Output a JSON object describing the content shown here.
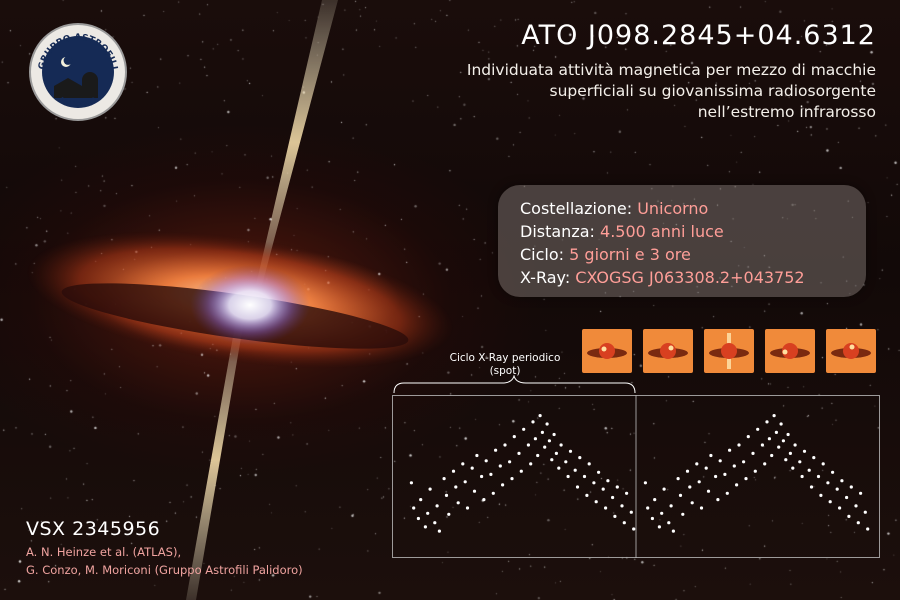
{
  "logo": {
    "top_text": "GRUPPO ASTROFILI",
    "bottom_text": "PALIDORO",
    "icon": "observatory-moon-logo"
  },
  "title": "ATO J098.2845+04.6312",
  "description": "Individuata attività magnetica per mezzo di macchie superficiali su giovanissima radiosorgente nell’estremo infrarosso",
  "info": {
    "rows": [
      {
        "label": "Costellazione:",
        "value": "Unicorno"
      },
      {
        "label": "Distanza:",
        "value": "4.500 anni luce"
      },
      {
        "label": "Ciclo:",
        "value": "5 giorni e 3 ore"
      },
      {
        "label": "X-Ray:",
        "value": "CXOGSG J063308.2+043752"
      }
    ]
  },
  "periodic_label": "Ciclo X-Ray periodico (spot)",
  "vsx": "VSX 2345956",
  "credits": [
    "A. N. Heinze et al. (ATLAS),",
    "G. Conzo, M. Moriconi (Gruppo Astrofili Palidoro)"
  ],
  "colors": {
    "accent_value": "#ff9e98",
    "credit": "#f0a3a0",
    "plot_points": "#ffffff"
  },
  "chart_data": {
    "type": "scatter",
    "xlim": [
      -1,
      1
    ],
    "phase_marker": 0,
    "series": [
      {
        "values": [
          [
            -0.96,
            17.06
          ],
          [
            -0.95,
            17.3
          ],
          [
            -0.93,
            17.4
          ],
          [
            -0.92,
            17.22
          ],
          [
            -0.9,
            17.48
          ],
          [
            -0.89,
            17.35
          ],
          [
            -0.88,
            17.12
          ],
          [
            -0.86,
            17.44
          ],
          [
            -0.85,
            17.28
          ],
          [
            -0.84,
            17.52
          ],
          [
            -0.82,
            17.02
          ],
          [
            -0.81,
            17.18
          ],
          [
            -0.8,
            17.36
          ],
          [
            -0.78,
            16.95
          ],
          [
            -0.77,
            17.1
          ],
          [
            -0.76,
            17.25
          ],
          [
            -0.74,
            16.88
          ],
          [
            -0.73,
            17.05
          ],
          [
            -0.72,
            17.3
          ],
          [
            -0.7,
            16.92
          ],
          [
            -0.69,
            17.14
          ],
          [
            -0.68,
            16.8
          ],
          [
            -0.66,
            17.0
          ],
          [
            -0.65,
            17.22
          ],
          [
            -0.64,
            16.85
          ],
          [
            -0.62,
            16.98
          ],
          [
            -0.61,
            17.16
          ],
          [
            -0.6,
            16.75
          ],
          [
            -0.58,
            16.9
          ],
          [
            -0.57,
            17.08
          ],
          [
            -0.56,
            16.7
          ],
          [
            -0.54,
            16.86
          ],
          [
            -0.53,
            17.02
          ],
          [
            -0.52,
            16.62
          ],
          [
            -0.5,
            16.78
          ],
          [
            -0.49,
            16.95
          ],
          [
            -0.48,
            16.55
          ],
          [
            -0.46,
            16.7
          ],
          [
            -0.45,
            16.88
          ],
          [
            -0.44,
            16.48
          ],
          [
            -0.43,
            16.64
          ],
          [
            -0.42,
            16.8
          ],
          [
            -0.41,
            16.42
          ],
          [
            -0.4,
            16.58
          ],
          [
            -0.39,
            16.72
          ],
          [
            -0.38,
            16.5
          ],
          [
            -0.37,
            16.66
          ],
          [
            -0.36,
            16.84
          ],
          [
            -0.35,
            16.6
          ],
          [
            -0.34,
            16.78
          ],
          [
            -0.33,
            16.92
          ],
          [
            -0.32,
            16.7
          ],
          [
            -0.3,
            16.86
          ],
          [
            -0.29,
            17.0
          ],
          [
            -0.28,
            16.76
          ],
          [
            -0.26,
            16.94
          ],
          [
            -0.25,
            17.1
          ],
          [
            -0.24,
            16.82
          ],
          [
            -0.22,
            17.0
          ],
          [
            -0.21,
            17.18
          ],
          [
            -0.2,
            16.88
          ],
          [
            -0.18,
            17.06
          ],
          [
            -0.17,
            17.24
          ],
          [
            -0.16,
            16.96
          ],
          [
            -0.14,
            17.12
          ],
          [
            -0.13,
            17.3
          ],
          [
            -0.12,
            17.04
          ],
          [
            -0.1,
            17.2
          ],
          [
            -0.09,
            17.38
          ],
          [
            -0.08,
            17.1
          ],
          [
            -0.06,
            17.28
          ],
          [
            -0.05,
            17.44
          ],
          [
            -0.04,
            17.16
          ],
          [
            -0.02,
            17.34
          ],
          [
            -0.01,
            17.5
          ],
          [
            0.04,
            17.06
          ],
          [
            0.05,
            17.3
          ],
          [
            0.07,
            17.4
          ],
          [
            0.08,
            17.22
          ],
          [
            0.1,
            17.48
          ],
          [
            0.11,
            17.35
          ],
          [
            0.12,
            17.12
          ],
          [
            0.14,
            17.44
          ],
          [
            0.15,
            17.28
          ],
          [
            0.16,
            17.52
          ],
          [
            0.18,
            17.02
          ],
          [
            0.19,
            17.18
          ],
          [
            0.2,
            17.36
          ],
          [
            0.22,
            16.95
          ],
          [
            0.23,
            17.1
          ],
          [
            0.24,
            17.25
          ],
          [
            0.26,
            16.88
          ],
          [
            0.27,
            17.05
          ],
          [
            0.28,
            17.3
          ],
          [
            0.3,
            16.92
          ],
          [
            0.31,
            17.14
          ],
          [
            0.32,
            16.8
          ],
          [
            0.34,
            17.0
          ],
          [
            0.35,
            17.22
          ],
          [
            0.36,
            16.85
          ],
          [
            0.38,
            16.98
          ],
          [
            0.39,
            17.16
          ],
          [
            0.4,
            16.75
          ],
          [
            0.42,
            16.9
          ],
          [
            0.43,
            17.08
          ],
          [
            0.44,
            16.7
          ],
          [
            0.46,
            16.86
          ],
          [
            0.47,
            17.02
          ],
          [
            0.48,
            16.62
          ],
          [
            0.5,
            16.78
          ],
          [
            0.51,
            16.95
          ],
          [
            0.52,
            16.55
          ],
          [
            0.54,
            16.7
          ],
          [
            0.55,
            16.88
          ],
          [
            0.56,
            16.48
          ],
          [
            0.57,
            16.64
          ],
          [
            0.58,
            16.8
          ],
          [
            0.59,
            16.42
          ],
          [
            0.6,
            16.58
          ],
          [
            0.61,
            16.72
          ],
          [
            0.62,
            16.5
          ],
          [
            0.63,
            16.66
          ],
          [
            0.64,
            16.84
          ],
          [
            0.65,
            16.6
          ],
          [
            0.66,
            16.78
          ],
          [
            0.67,
            16.92
          ],
          [
            0.68,
            16.7
          ],
          [
            0.7,
            16.86
          ],
          [
            0.71,
            17.0
          ],
          [
            0.72,
            16.76
          ],
          [
            0.74,
            16.94
          ],
          [
            0.75,
            17.1
          ],
          [
            0.76,
            16.82
          ],
          [
            0.78,
            17.0
          ],
          [
            0.79,
            17.18
          ],
          [
            0.8,
            16.88
          ],
          [
            0.82,
            17.06
          ],
          [
            0.83,
            17.24
          ],
          [
            0.84,
            16.96
          ],
          [
            0.86,
            17.12
          ],
          [
            0.87,
            17.3
          ],
          [
            0.88,
            17.04
          ],
          [
            0.9,
            17.2
          ],
          [
            0.91,
            17.38
          ],
          [
            0.92,
            17.1
          ],
          [
            0.94,
            17.28
          ],
          [
            0.95,
            17.44
          ],
          [
            0.96,
            17.16
          ],
          [
            0.98,
            17.34
          ],
          [
            0.99,
            17.5
          ]
        ]
      }
    ],
    "ylim": [
      16.3,
      17.7
    ]
  }
}
